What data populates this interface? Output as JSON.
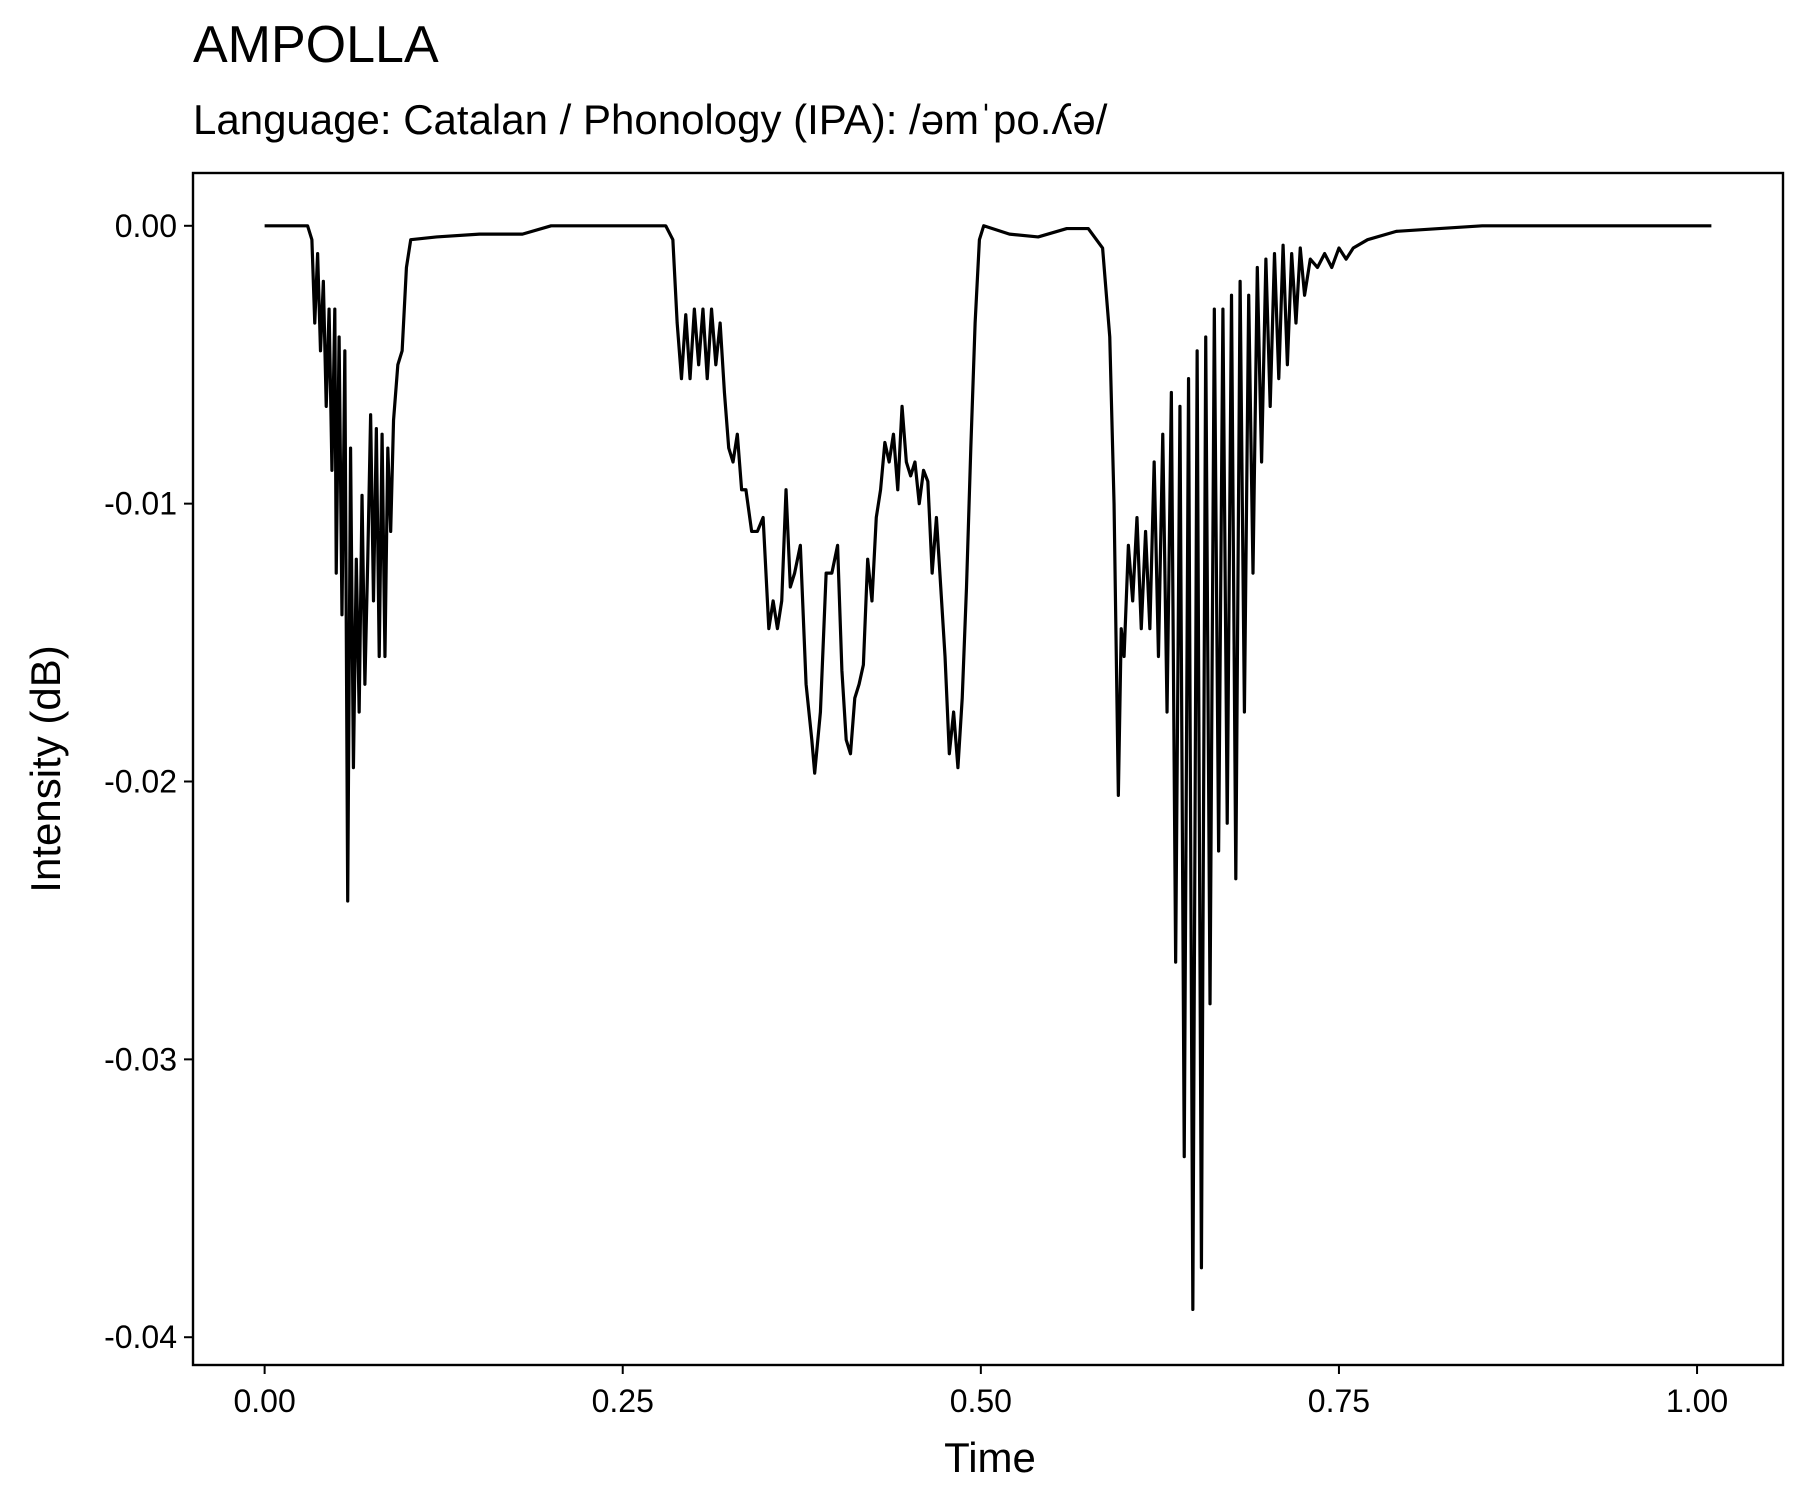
{
  "chart_data": {
    "type": "line",
    "title": "AMPOLLA",
    "subtitle": "Language: Catalan / Phonology (IPA): /əmˈpo.ʎə/",
    "x_label": "Time",
    "y_label": "Intensity (dB)",
    "color": "#000000",
    "xlim": [
      -0.05,
      1.06
    ],
    "ylim": [
      -0.041,
      0.0019
    ],
    "xticks": [
      {
        "value": 0,
        "label": "0.00"
      },
      {
        "value": 0.25,
        "label": "0.25"
      },
      {
        "value": 0.5,
        "label": "0.50"
      },
      {
        "value": 0.75,
        "label": "0.75"
      },
      {
        "value": 1,
        "label": "1.00"
      }
    ],
    "yticks": [
      {
        "value": 0,
        "label": "0.00"
      },
      {
        "value": -0.01,
        "label": "-0.01"
      },
      {
        "value": -0.02,
        "label": "-0.02"
      },
      {
        "value": -0.03,
        "label": "-0.03"
      },
      {
        "value": -0.04,
        "label": "-0.04"
      }
    ],
    "x": [
      0,
      0.03,
      0.033,
      0.035,
      0.037,
      0.039,
      0.041,
      0.043,
      0.045,
      0.047,
      0.049,
      0.05,
      0.052,
      0.054,
      0.056,
      0.058,
      0.06,
      0.062,
      0.064,
      0.066,
      0.068,
      0.07,
      0.072,
      0.074,
      0.076,
      0.078,
      0.08,
      0.082,
      0.084,
      0.086,
      0.088,
      0.09,
      0.093,
      0.096,
      0.099,
      0.102,
      0.12,
      0.15,
      0.18,
      0.2,
      0.25,
      0.28,
      0.285,
      0.288,
      0.291,
      0.294,
      0.297,
      0.3,
      0.303,
      0.306,
      0.309,
      0.312,
      0.315,
      0.318,
      0.321,
      0.324,
      0.327,
      0.33,
      0.333,
      0.336,
      0.34,
      0.344,
      0.348,
      0.352,
      0.355,
      0.358,
      0.361,
      0.364,
      0.367,
      0.37,
      0.374,
      0.378,
      0.382,
      0.384,
      0.388,
      0.392,
      0.396,
      0.4,
      0.403,
      0.406,
      0.409,
      0.412,
      0.415,
      0.418,
      0.421,
      0.424,
      0.427,
      0.43,
      0.433,
      0.436,
      0.439,
      0.442,
      0.445,
      0.448,
      0.451,
      0.454,
      0.457,
      0.46,
      0.463,
      0.466,
      0.469,
      0.472,
      0.475,
      0.478,
      0.481,
      0.484,
      0.487,
      0.49,
      0.493,
      0.496,
      0.499,
      0.502,
      0.52,
      0.54,
      0.56,
      0.575,
      0.585,
      0.59,
      0.593,
      0.596,
      0.598,
      0.6,
      0.603,
      0.606,
      0.609,
      0.612,
      0.615,
      0.618,
      0.621,
      0.624,
      0.627,
      0.63,
      0.633,
      0.636,
      0.639,
      0.642,
      0.645,
      0.648,
      0.651,
      0.654,
      0.657,
      0.66,
      0.663,
      0.666,
      0.669,
      0.672,
      0.675,
      0.678,
      0.681,
      0.684,
      0.687,
      0.69,
      0.693,
      0.696,
      0.699,
      0.702,
      0.705,
      0.708,
      0.711,
      0.714,
      0.717,
      0.72,
      0.723,
      0.726,
      0.73,
      0.735,
      0.74,
      0.745,
      0.75,
      0.755,
      0.76,
      0.77,
      0.79,
      0.82,
      0.85,
      0.9,
      0.95,
      1.01
    ],
    "values": [
      0,
      0,
      -0.0005,
      -0.0035,
      -0.001,
      -0.0045,
      -0.002,
      -0.0065,
      -0.003,
      -0.0088,
      -0.003,
      -0.0125,
      -0.004,
      -0.014,
      -0.0045,
      -0.0243,
      -0.008,
      -0.0195,
      -0.012,
      -0.0175,
      -0.0097,
      -0.0165,
      -0.012,
      -0.0068,
      -0.0135,
      -0.0073,
      -0.0155,
      -0.0075,
      -0.0155,
      -0.008,
      -0.011,
      -0.007,
      -0.005,
      -0.0045,
      -0.0015,
      -0.0005,
      -0.0004,
      -0.0003,
      -0.0003,
      0,
      0,
      0,
      -0.0005,
      -0.0035,
      -0.0055,
      -0.0032,
      -0.0055,
      -0.003,
      -0.005,
      -0.003,
      -0.0055,
      -0.003,
      -0.005,
      -0.0035,
      -0.006,
      -0.008,
      -0.0085,
      -0.0075,
      -0.0095,
      -0.0095,
      -0.011,
      -0.011,
      -0.0105,
      -0.0145,
      -0.0135,
      -0.0145,
      -0.0135,
      -0.0095,
      -0.013,
      -0.0125,
      -0.0115,
      -0.0165,
      -0.0185,
      -0.0197,
      -0.0175,
      -0.0125,
      -0.0125,
      -0.0115,
      -0.016,
      -0.0185,
      -0.019,
      -0.017,
      -0.0165,
      -0.0158,
      -0.012,
      -0.0135,
      -0.0105,
      -0.0095,
      -0.0078,
      -0.0085,
      -0.0075,
      -0.0095,
      -0.0065,
      -0.0085,
      -0.009,
      -0.0085,
      -0.01,
      -0.0088,
      -0.0092,
      -0.0125,
      -0.0105,
      -0.013,
      -0.0155,
      -0.019,
      -0.0175,
      -0.0195,
      -0.017,
      -0.013,
      -0.008,
      -0.0035,
      -0.0005,
      0,
      -0.0003,
      -0.0004,
      -0.0001,
      -0.0001,
      -0.0008,
      -0.004,
      -0.01,
      -0.0205,
      -0.0145,
      -0.0155,
      -0.0115,
      -0.0135,
      -0.0105,
      -0.0145,
      -0.011,
      -0.0145,
      -0.0085,
      -0.0155,
      -0.0075,
      -0.0175,
      -0.006,
      -0.0265,
      -0.0065,
      -0.0335,
      -0.0055,
      -0.039,
      -0.0045,
      -0.0375,
      -0.004,
      -0.028,
      -0.003,
      -0.0225,
      -0.003,
      -0.0215,
      -0.0025,
      -0.0235,
      -0.002,
      -0.0175,
      -0.0025,
      -0.0125,
      -0.0015,
      -0.0085,
      -0.0012,
      -0.0065,
      -0.001,
      -0.0055,
      -0.0007,
      -0.005,
      -0.001,
      -0.0035,
      -0.0008,
      -0.0025,
      -0.0012,
      -0.0015,
      -0.001,
      -0.0015,
      -0.0008,
      -0.0012,
      -0.0008,
      -0.0005,
      -0.0002,
      -0.0001,
      0,
      0,
      0,
      0
    ]
  }
}
